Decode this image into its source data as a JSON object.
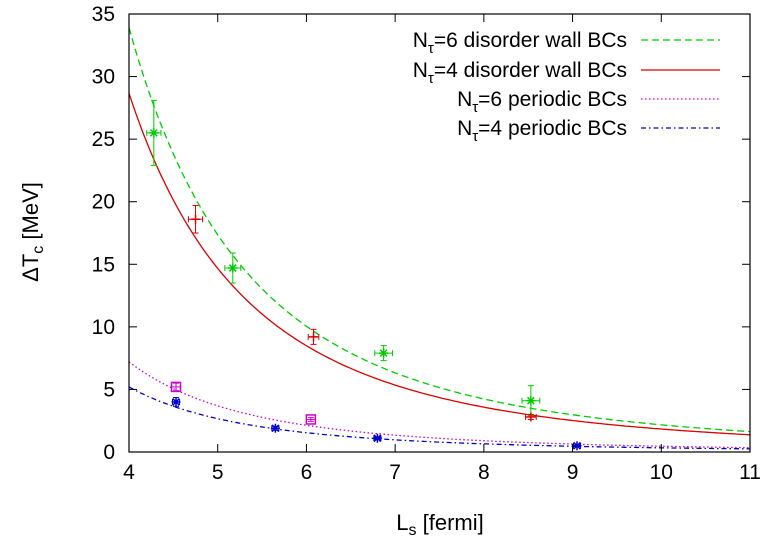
{
  "chart_data": {
    "type": "scatter",
    "xlabel": "L",
    "xlabel_sub": "s",
    "xlabel_unit": " [fermi]",
    "ylabel_prefix": "ΔT",
    "ylabel_sub": "c",
    "ylabel_unit": " [MeV]",
    "xlim": [
      4,
      11
    ],
    "ylim": [
      0,
      35
    ],
    "x_ticks": [
      4,
      5,
      6,
      7,
      8,
      9,
      10,
      11
    ],
    "y_ticks": [
      0,
      5,
      10,
      15,
      20,
      25,
      30,
      35
    ],
    "grid": false,
    "legend_position": "top-right",
    "series": [
      {
        "name": "N",
        "name_sub": "τ",
        "name_rest": "=6 disorder wall BCs",
        "color": "#00cc00",
        "line_style": "dashed",
        "marker": "star",
        "fit_coeff": 2170,
        "points": [
          {
            "x": 4.28,
            "y": 25.5,
            "xerr": 0.08,
            "yerr": 2.6
          },
          {
            "x": 5.17,
            "y": 14.7,
            "xerr": 0.09,
            "yerr": 1.2
          },
          {
            "x": 6.87,
            "y": 7.9,
            "xerr": 0.1,
            "yerr": 0.6
          },
          {
            "x": 8.53,
            "y": 4.1,
            "xerr": 0.1,
            "yerr": 1.2
          }
        ]
      },
      {
        "name": "N",
        "name_sub": "τ",
        "name_rest": "=4 disorder wall BCs",
        "color": "#dd0000",
        "line_style": "solid",
        "marker": "plus",
        "fit_coeff": 1834,
        "points": [
          {
            "x": 4.75,
            "y": 18.6,
            "xerr": 0.08,
            "yerr": 1.1
          },
          {
            "x": 6.08,
            "y": 9.2,
            "xerr": 0.06,
            "yerr": 0.6
          },
          {
            "x": 8.53,
            "y": 2.8,
            "xerr": 0.06,
            "yerr": 0.2
          }
        ]
      },
      {
        "name": "N",
        "name_sub": "τ",
        "name_rest": "=6 periodic BCs",
        "color": "#cc00cc",
        "line_style": "dotted",
        "marker": "square",
        "fit_coeff": 461,
        "points": [
          {
            "x": 4.53,
            "y": 5.2,
            "xerr": 0.05,
            "yerr": 0.3
          },
          {
            "x": 6.05,
            "y": 2.6,
            "xerr": 0.05,
            "yerr": 0.15
          }
        ]
      },
      {
        "name": "N",
        "name_sub": "τ",
        "name_rest": "=4 periodic BCs",
        "color": "#0000cc",
        "line_style": "dashdot",
        "marker": "star",
        "fit_coeff": 333,
        "points": [
          {
            "x": 4.53,
            "y": 4.0,
            "xerr": 0.04,
            "yerr": 0.35
          },
          {
            "x": 5.65,
            "y": 1.9,
            "xerr": 0.04,
            "yerr": 0.15
          },
          {
            "x": 6.8,
            "y": 1.1,
            "xerr": 0.04,
            "yerr": 0.1
          },
          {
            "x": 9.05,
            "y": 0.5,
            "xerr": 0.04,
            "yerr": 0.05
          }
        ]
      }
    ]
  }
}
